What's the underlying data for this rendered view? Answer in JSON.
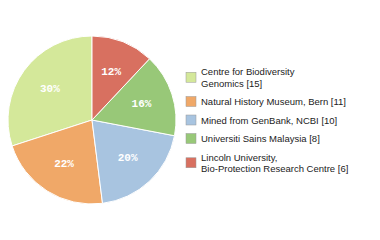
{
  "chart_data": {
    "type": "pie",
    "categories": [
      "Centre for Biodiversity\nGenomics [15]",
      "Natural History Museum, Bern [11]",
      "Mined from GenBank, NCBI [10]",
      "Universiti Sains Malaysia [8]",
      "Lincoln University,\nBio-Protection Research Centre [6]"
    ],
    "values": [
      30,
      22,
      20,
      16,
      12
    ],
    "value_labels": [
      "30%",
      "22%",
      "20%",
      "16%",
      "12%"
    ],
    "colors": [
      "#d4e89a",
      "#f0a868",
      "#a8c4e0",
      "#98c878",
      "#d87060"
    ],
    "data_labels": true,
    "legend": "right"
  }
}
